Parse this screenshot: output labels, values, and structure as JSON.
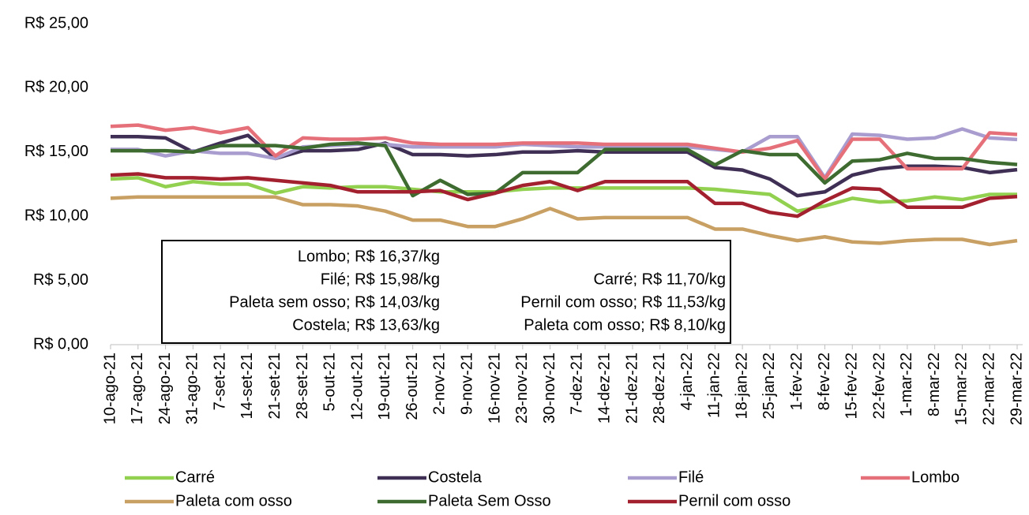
{
  "chart_data": {
    "type": "line",
    "categories": [
      "10-ago-21",
      "17-ago-21",
      "24-ago-21",
      "31-ago-21",
      "7-set-21",
      "14-set-21",
      "21-set-21",
      "28-set-21",
      "5-out-21",
      "12-out-21",
      "19-out-21",
      "26-out-21",
      "2-nov-21",
      "9-nov-21",
      "16-nov-21",
      "23-nov-21",
      "30-nov-21",
      "7-dez-21",
      "14-dez-21",
      "21-dez-21",
      "28-dez-21",
      "4-jan-22",
      "11-jan-22",
      "18-jan-22",
      "25-jan-22",
      "1-fev-22",
      "8-fev-22",
      "15-fev-22",
      "22-fev-22",
      "1-mar-22",
      "8-mar-22",
      "15-mar-22",
      "22-mar-22",
      "29-mar-22"
    ],
    "series": [
      {
        "name": "Carré",
        "color": "#92d050",
        "values": [
          12.9,
          13.0,
          12.3,
          12.7,
          12.5,
          12.5,
          11.8,
          12.3,
          12.2,
          12.3,
          12.3,
          12.1,
          11.9,
          11.9,
          11.9,
          12.1,
          12.2,
          12.2,
          12.2,
          12.2,
          12.2,
          12.2,
          12.1,
          11.9,
          11.7,
          10.4,
          10.8,
          11.4,
          11.1,
          11.2,
          11.5,
          11.3,
          11.7,
          11.7
        ]
      },
      {
        "name": "Costela",
        "color": "#3f2f55",
        "values": [
          16.2,
          16.2,
          16.1,
          15.0,
          15.7,
          16.3,
          14.5,
          15.1,
          15.1,
          15.2,
          15.7,
          14.8,
          14.8,
          14.7,
          14.8,
          15.0,
          15.0,
          15.1,
          15.0,
          15.0,
          15.0,
          15.0,
          13.8,
          13.6,
          12.9,
          11.6,
          11.9,
          13.2,
          13.7,
          13.9,
          13.9,
          13.8,
          13.4,
          13.63
        ]
      },
      {
        "name": "Filé",
        "color": "#a99cce",
        "values": [
          15.2,
          15.2,
          14.7,
          15.1,
          14.9,
          14.9,
          14.5,
          15.4,
          15.5,
          15.6,
          15.6,
          15.4,
          15.4,
          15.4,
          15.4,
          15.6,
          15.5,
          15.4,
          15.4,
          15.4,
          15.4,
          15.4,
          15.2,
          15.0,
          16.2,
          16.2,
          13.0,
          16.4,
          16.3,
          16.0,
          16.1,
          16.8,
          16.1,
          15.98
        ]
      },
      {
        "name": "Lombo",
        "color": "#e5707a",
        "values": [
          17.0,
          17.1,
          16.7,
          16.9,
          16.5,
          16.9,
          14.7,
          16.1,
          16.0,
          16.0,
          16.1,
          15.7,
          15.6,
          15.6,
          15.6,
          15.7,
          15.7,
          15.7,
          15.6,
          15.6,
          15.6,
          15.6,
          15.3,
          15.0,
          15.3,
          15.9,
          12.9,
          16.0,
          16.0,
          13.7,
          13.7,
          13.7,
          16.5,
          16.37
        ]
      },
      {
        "name": "Paleta com osso",
        "color": "#c9a064",
        "values": [
          11.4,
          11.5,
          11.5,
          11.5,
          11.5,
          11.5,
          11.5,
          10.9,
          10.9,
          10.8,
          10.4,
          9.7,
          9.7,
          9.2,
          9.2,
          9.8,
          10.6,
          9.8,
          9.9,
          9.9,
          9.9,
          9.9,
          9.0,
          9.0,
          8.5,
          8.1,
          8.4,
          8.0,
          7.9,
          8.1,
          8.2,
          8.2,
          7.8,
          8.1
        ]
      },
      {
        "name": "Paleta Sem Osso",
        "color": "#3e6b2f",
        "values": [
          15.1,
          15.1,
          15.1,
          15.0,
          15.5,
          15.5,
          15.5,
          15.3,
          15.6,
          15.7,
          15.5,
          11.6,
          12.8,
          11.7,
          11.8,
          13.4,
          13.4,
          13.4,
          15.2,
          15.2,
          15.2,
          15.2,
          14.0,
          15.1,
          14.8,
          14.8,
          12.6,
          14.3,
          14.4,
          14.9,
          14.5,
          14.5,
          14.2,
          14.03
        ]
      },
      {
        "name": "Pernil com osso",
        "color": "#a3212f",
        "values": [
          13.2,
          13.3,
          13.0,
          13.0,
          12.9,
          13.0,
          12.8,
          12.6,
          12.4,
          11.9,
          11.9,
          11.9,
          12.0,
          11.3,
          11.8,
          12.4,
          12.7,
          12.0,
          12.7,
          12.7,
          12.7,
          12.7,
          11.0,
          11.0,
          10.3,
          10.0,
          11.2,
          12.2,
          12.1,
          10.7,
          10.7,
          10.7,
          11.4,
          11.53
        ]
      }
    ],
    "ylim": [
      0,
      25
    ],
    "yticks": [
      {
        "value": 0,
        "label": "R$ 0,00"
      },
      {
        "value": 5,
        "label": "R$ 5,00"
      },
      {
        "value": 10,
        "label": "R$ 10,00"
      },
      {
        "value": 15,
        "label": "R$ 15,00"
      },
      {
        "value": 20,
        "label": "R$ 20,00"
      },
      {
        "value": 25,
        "label": "R$ 25,00"
      }
    ],
    "annotations": {
      "left": [
        "Lombo; R$ 16,37/kg",
        "Filé; R$ 15,98/kg",
        "Paleta sem osso; R$ 14,03/kg",
        "Costela; R$ 13,63/kg"
      ],
      "right": [
        "Carré; R$ 11,70/kg",
        "Pernil com osso; R$ 11,53/kg",
        "Paleta com osso; R$ 8,10/kg"
      ]
    }
  }
}
